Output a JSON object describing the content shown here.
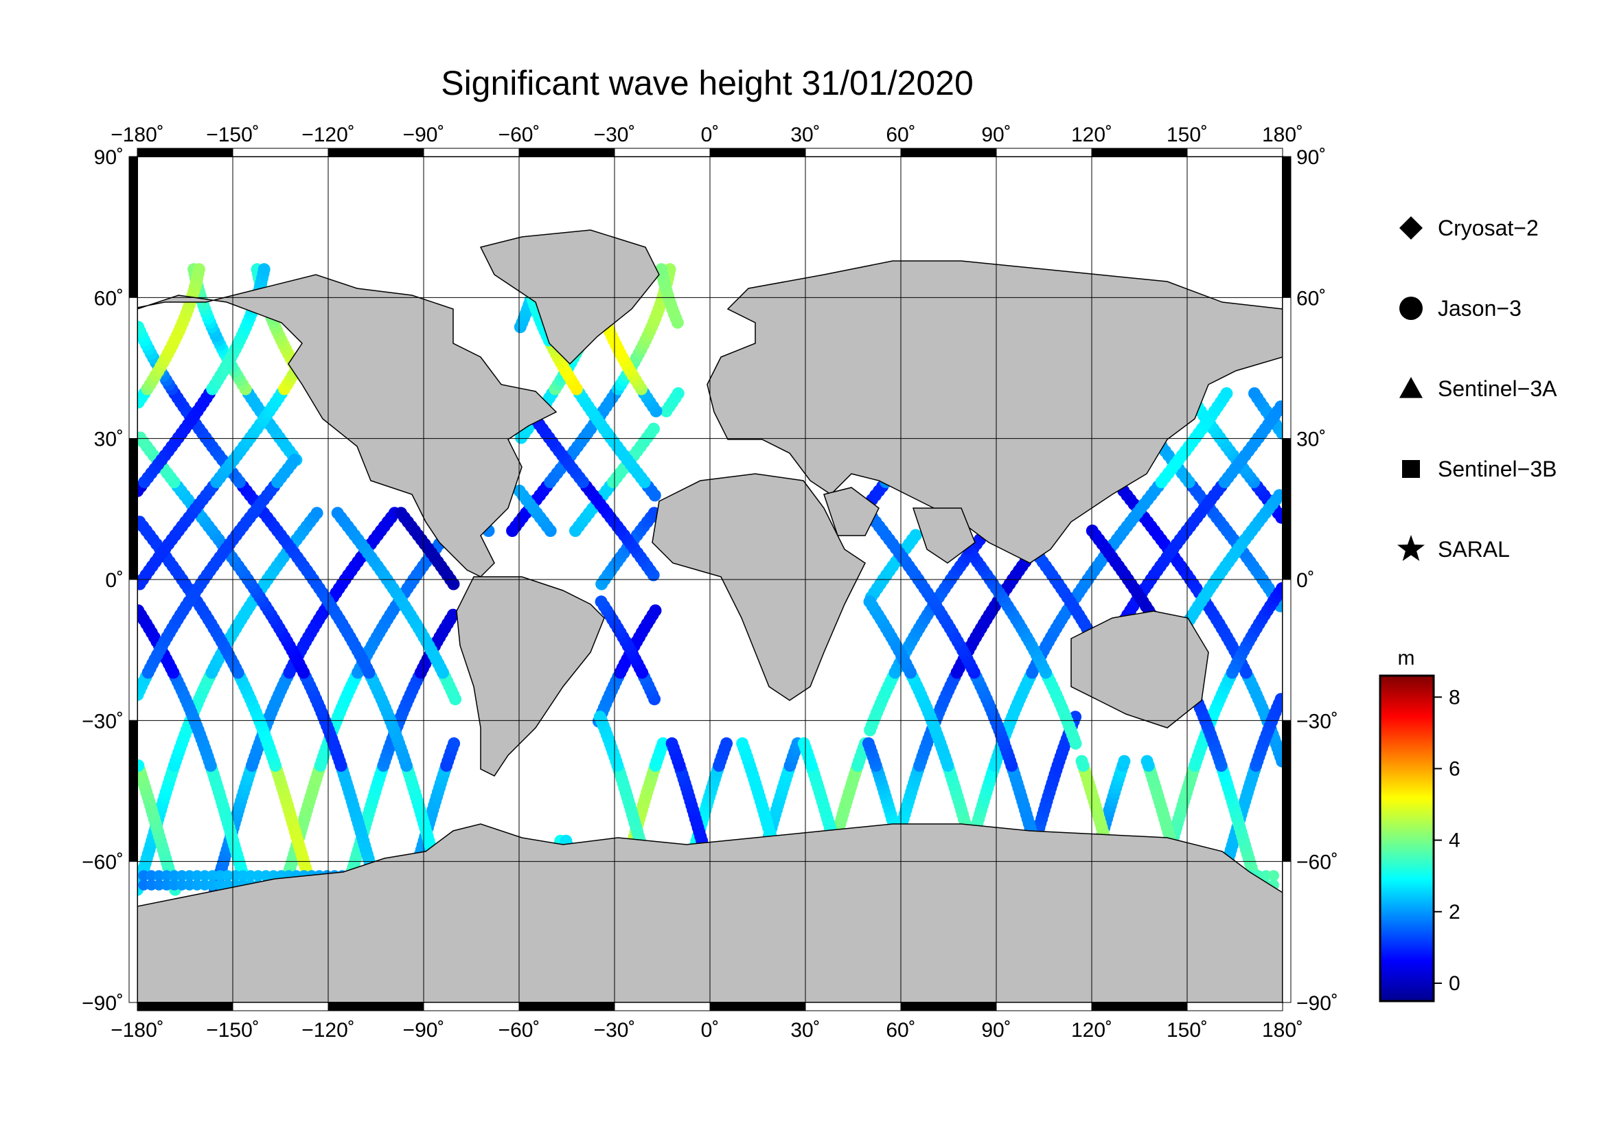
{
  "title": "Significant wave height 31/01/2020",
  "axes": {
    "lon_ticks": [
      "−180˚",
      "−150˚",
      "−120˚",
      "−90˚",
      "−60˚",
      "−30˚",
      "0˚",
      "30˚",
      "60˚",
      "90˚",
      "120˚",
      "150˚",
      "180˚"
    ],
    "lat_ticks": [
      "90˚",
      "60˚",
      "30˚",
      "0˚",
      "−30˚",
      "−60˚",
      "−90˚"
    ],
    "lon_range": [
      -180,
      180
    ],
    "lat_range": [
      -90,
      90
    ]
  },
  "legend": {
    "items": [
      {
        "label": "Cryosat−2",
        "marker": "diamond"
      },
      {
        "label": "Jason−3",
        "marker": "circle"
      },
      {
        "label": "Sentinel−3A",
        "marker": "triangle"
      },
      {
        "label": "Sentinel−3B",
        "marker": "square"
      },
      {
        "label": "SARAL",
        "marker": "star"
      }
    ]
  },
  "colorbar": {
    "unit": "m",
    "ticks": [
      "8",
      "6",
      "4",
      "2",
      "0"
    ],
    "range": [
      -0.5,
      8.6
    ],
    "colormap": "jet"
  },
  "colors": {
    "land": "#bebebe",
    "ocean": "#ffffff",
    "grid": "#000000"
  }
}
